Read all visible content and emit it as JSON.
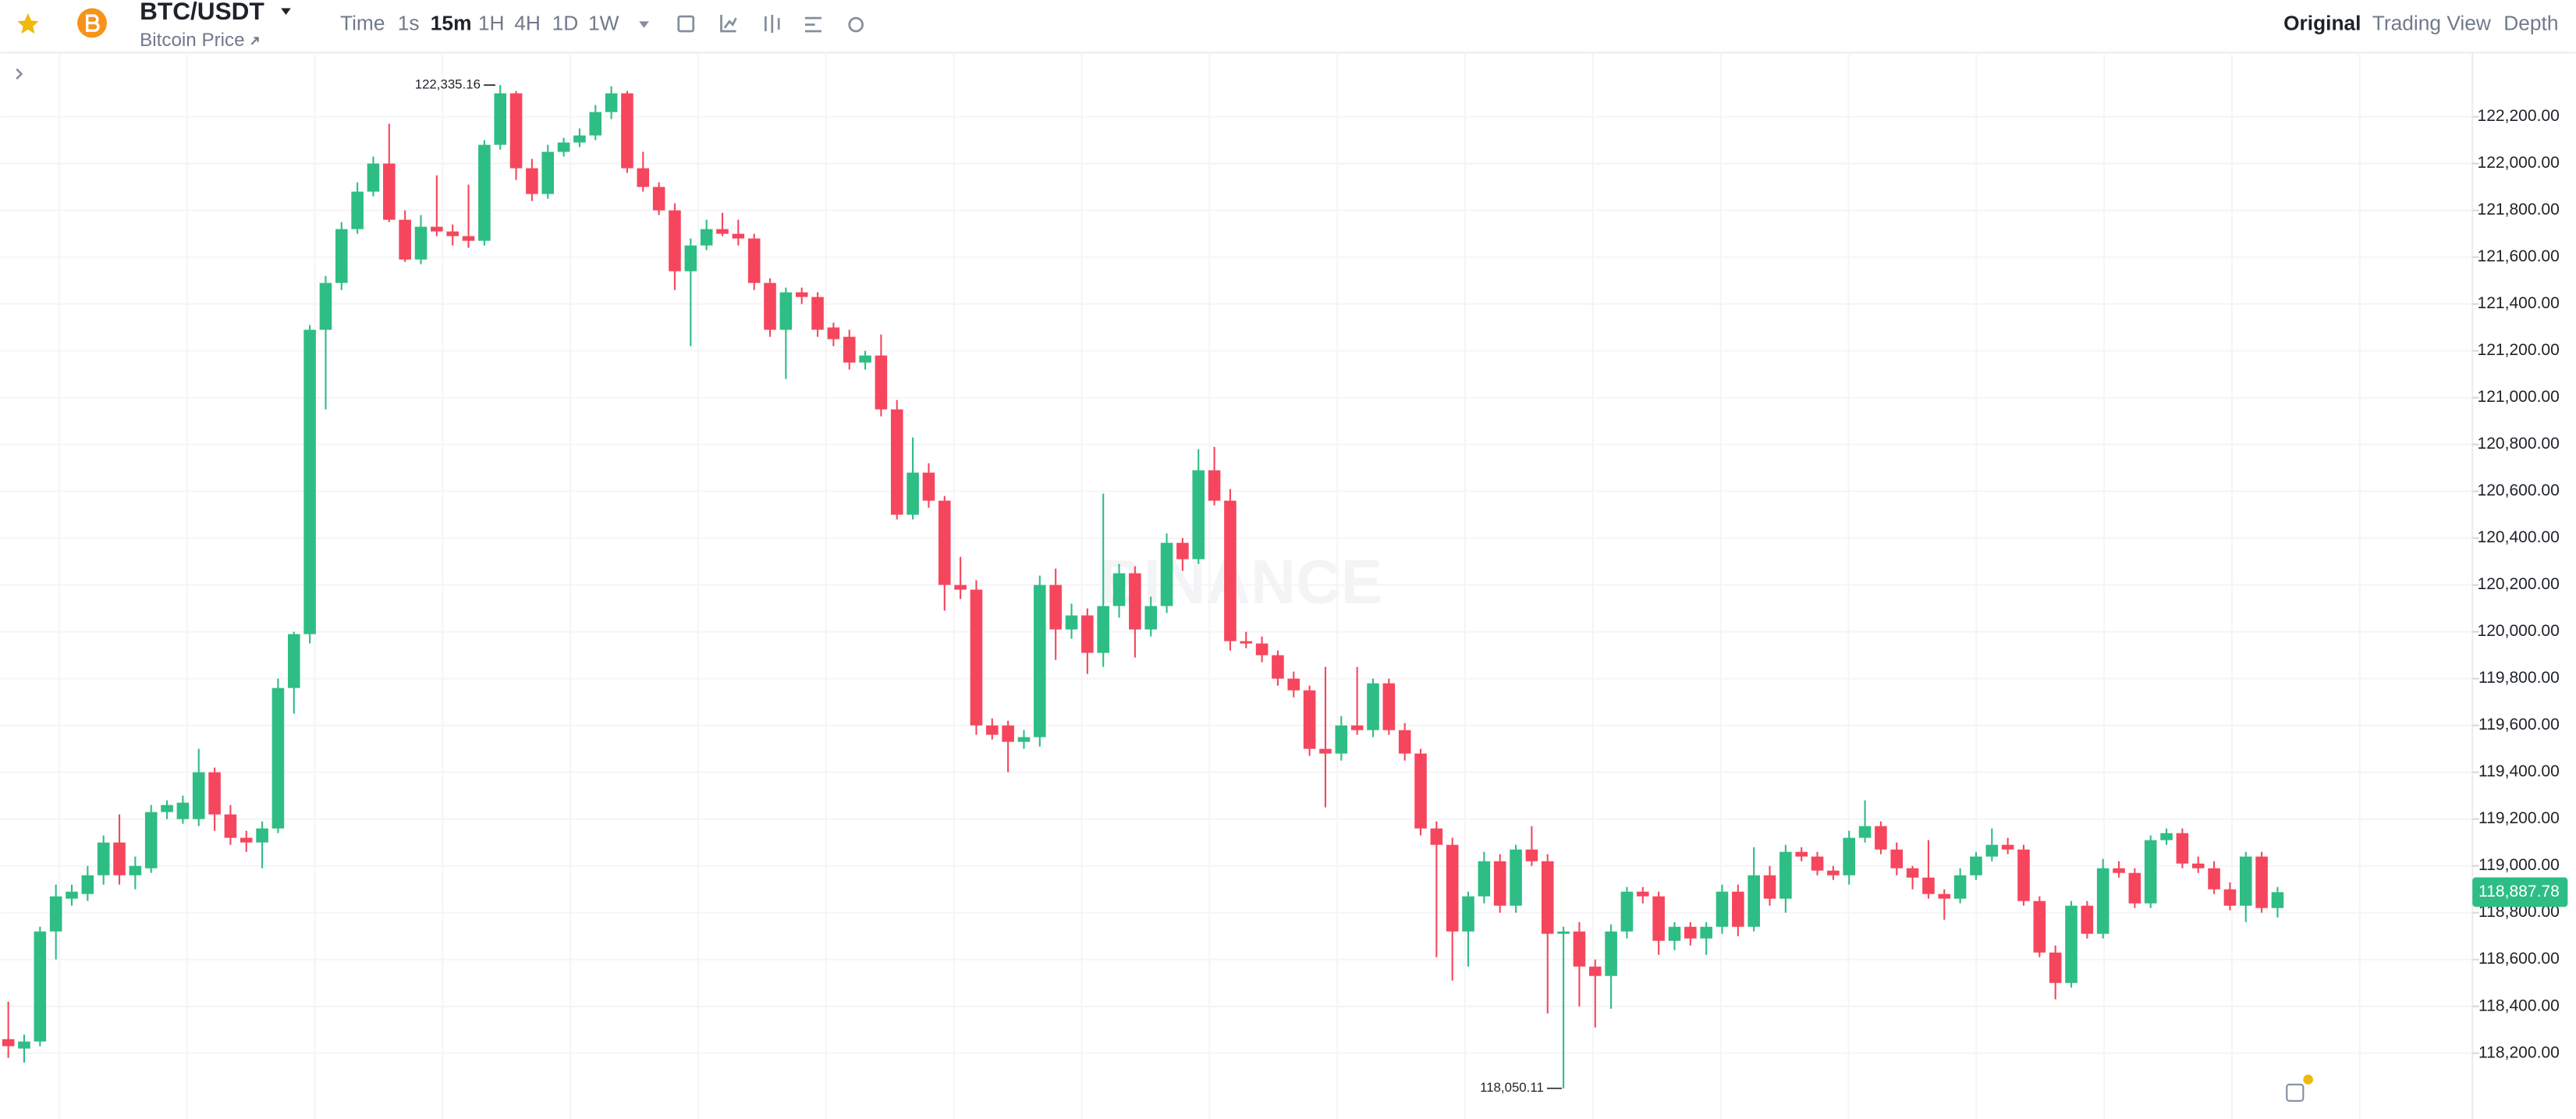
{
  "header": {
    "symbol": "BTC/USDT",
    "subtitle": "Bitcoin Price",
    "intervals": [
      "Time",
      "1s",
      "15m",
      "1H",
      "4H",
      "1D",
      "1W"
    ],
    "tabs": [
      "Original",
      "Trading View",
      "Depth"
    ]
  },
  "chart_data": {
    "type": "candlestick",
    "up_color": "#2ebd85",
    "down_color": "#f6465d",
    "grid": true,
    "watermark": "BINANCE",
    "ylim": [
      117919,
      122474
    ],
    "yticks": [
      {
        "value": 118200,
        "label": "118,200.00"
      },
      {
        "value": 118400,
        "label": "118,400.00"
      },
      {
        "value": 118600,
        "label": "118,600.00"
      },
      {
        "value": 118800,
        "label": "118,800.00"
      },
      {
        "value": 119000,
        "label": "119,000.00"
      },
      {
        "value": 119200,
        "label": "119,200.00"
      },
      {
        "value": 119400,
        "label": "119,400.00"
      },
      {
        "value": 119600,
        "label": "119,600.00"
      },
      {
        "value": 119800,
        "label": "119,800.00"
      },
      {
        "value": 120000,
        "label": "120,000.00"
      },
      {
        "value": 120200,
        "label": "120,200.00"
      },
      {
        "value": 120400,
        "label": "120,400.00"
      },
      {
        "value": 120600,
        "label": "120,600.00"
      },
      {
        "value": 120800,
        "label": "120,800.00"
      },
      {
        "value": 121000,
        "label": "121,000.00"
      },
      {
        "value": 121200,
        "label": "121,200.00"
      },
      {
        "value": 121400,
        "label": "121,400.00"
      },
      {
        "value": 121600,
        "label": "121,600.00"
      },
      {
        "value": 121800,
        "label": "121,800.00"
      },
      {
        "value": 122000,
        "label": "122,000.00"
      },
      {
        "value": 122200,
        "label": "122,200.00"
      }
    ],
    "max_label": {
      "value": 122335.16,
      "label": "122,335.16"
    },
    "min_label": {
      "value": 118050.11,
      "label": "118,050.11"
    },
    "last_price": {
      "value": 118887.78,
      "label": "118,887.78"
    },
    "open": [
      118260,
      118220,
      118250,
      118720,
      118860,
      118880,
      118960,
      119100,
      118960,
      118990,
      119230,
      119200,
      119200,
      119400,
      119220,
      119120,
      119100,
      119160,
      119760,
      119990,
      121290,
      121490,
      121720,
      121880,
      122000,
      121760,
      121590,
      121730,
      121710,
      121690,
      121670,
      122080,
      122300,
      121980,
      121870,
      122050,
      122090,
      122120,
      122220,
      122300,
      121980,
      121900,
      121800,
      121540,
      121650,
      121720,
      121700,
      121680,
      121490,
      121290,
      121450,
      121430,
      121300,
      121260,
      121150,
      121180,
      120950,
      120500,
      120680,
      120560,
      120200,
      120180,
      119600,
      119600,
      119530,
      119550,
      120200,
      120010,
      120070,
      119910,
      120110,
      120250,
      120010,
      120110,
      120380,
      120310,
      120690,
      120560,
      119960,
      119950,
      119900,
      119800,
      119750,
      119500,
      119480,
      119600,
      119580,
      119780,
      119580,
      119480,
      119160,
      119090,
      118720,
      118870,
      119020,
      118830,
      119070,
      119020,
      118710,
      118720,
      118570,
      118530,
      118720,
      118890,
      118870,
      118680,
      118740,
      118690,
      118740,
      118890,
      118740,
      118960,
      118860,
      119060,
      119040,
      118980,
      118960,
      119120,
      119170,
      119070,
      118990,
      118950,
      118880,
      118860,
      118960,
      119040,
      119090,
      119070,
      118850,
      118630,
      118500,
      118830,
      118710,
      118990,
      118970,
      118840,
      119110,
      119140,
      119010,
      118990,
      118900,
      118830,
      119040,
      118820
    ],
    "high": [
      118420,
      118280,
      118740,
      118920,
      118920,
      119000,
      119130,
      119220,
      119040,
      119260,
      119280,
      119300,
      119500,
      119420,
      119260,
      119150,
      119190,
      119800,
      120000,
      121310,
      121520,
      121750,
      121920,
      122030,
      122170,
      121800,
      121780,
      121950,
      121740,
      121910,
      122100,
      122335.16,
      122310,
      122020,
      122080,
      122110,
      122150,
      122250,
      122330,
      122310,
      122050,
      121920,
      121830,
      121680,
      121760,
      121790,
      121760,
      121700,
      121510,
      121470,
      121470,
      121450,
      121320,
      121290,
      121200,
      121270,
      120990,
      120830,
      120720,
      120580,
      120320,
      120220,
      119630,
      119620,
      119580,
      120240,
      120270,
      120120,
      120100,
      120590,
      120290,
      120280,
      120150,
      120420,
      120400,
      120780,
      120790,
      120610,
      120000,
      119980,
      119920,
      119830,
      119770,
      119850,
      119640,
      119850,
      119800,
      119800,
      119610,
      119500,
      119190,
      119120,
      118890,
      119060,
      119050,
      119090,
      119170,
      119050,
      118740,
      118760,
      118600,
      118750,
      118910,
      118910,
      118890,
      118760,
      118760,
      118760,
      118920,
      118920,
      119080,
      119000,
      119090,
      119080,
      119060,
      119000,
      119150,
      119280,
      119190,
      119100,
      119000,
      119110,
      118900,
      118990,
      119060,
      119160,
      119120,
      119090,
      118870,
      118660,
      118850,
      118850,
      119030,
      119020,
      118990,
      119130,
      119160,
      119160,
      119040,
      119020,
      118930,
      119060,
      119060,
      118910
    ],
    "low": [
      118180,
      118160,
      118230,
      118600,
      118830,
      118850,
      118920,
      118920,
      118900,
      118970,
      119200,
      119180,
      119170,
      119150,
      119090,
      119060,
      118990,
      119140,
      119650,
      119950,
      120950,
      121460,
      121700,
      121860,
      121750,
      121580,
      121570,
      121690,
      121650,
      121640,
      121650,
      122060,
      121930,
      121840,
      121850,
      122030,
      122070,
      122100,
      122190,
      121960,
      121880,
      121780,
      121460,
      121220,
      121630,
      121690,
      121650,
      121460,
      121260,
      121080,
      121400,
      121260,
      121220,
      121120,
      121120,
      120920,
      120480,
      120480,
      120530,
      120090,
      120140,
      119560,
      119540,
      119400,
      119500,
      119510,
      119880,
      119970,
      119820,
      119850,
      120060,
      119890,
      119980,
      120080,
      120260,
      120290,
      120540,
      119920,
      119930,
      119870,
      119770,
      119720,
      119470,
      119250,
      119450,
      119560,
      119550,
      119560,
      119450,
      119130,
      118610,
      118510,
      118570,
      118840,
      118800,
      118800,
      119000,
      118370,
      118050.11,
      118400,
      118310,
      118390,
      118690,
      118840,
      118620,
      118640,
      118660,
      118620,
      118710,
      118700,
      118720,
      118830,
      118800,
      119020,
      118960,
      118940,
      118920,
      119100,
      119050,
      118960,
      118900,
      118860,
      118770,
      118840,
      118940,
      119020,
      119050,
      118830,
      118610,
      118430,
      118480,
      118690,
      118690,
      118950,
      118820,
      118820,
      119090,
      118990,
      118970,
      118880,
      118810,
      118760,
      118800,
      118780
    ],
    "close": [
      118230,
      118250,
      118720,
      118870,
      118890,
      118960,
      119100,
      118960,
      119000,
      119230,
      119260,
      119270,
      119400,
      119220,
      119120,
      119100,
      119160,
      119760,
      119990,
      121290,
      121490,
      121720,
      121880,
      122000,
      121760,
      121590,
      121730,
      121710,
      121690,
      121670,
      122080,
      122300,
      121980,
      121870,
      122050,
      122090,
      122120,
      122220,
      122300,
      121980,
      121900,
      121800,
      121540,
      121650,
      121720,
      121700,
      121680,
      121490,
      121290,
      121450,
      121430,
      121290,
      121250,
      121150,
      121180,
      120950,
      120500,
      120680,
      120560,
      120200,
      120180,
      119600,
      119560,
      119530,
      119550,
      120200,
      120010,
      120070,
      119910,
      120110,
      120250,
      120010,
      120110,
      120380,
      120310,
      120690,
      120560,
      119960,
      119950,
      119900,
      119800,
      119750,
      119500,
      119480,
      119600,
      119580,
      119780,
      119580,
      119480,
      119160,
      119090,
      118720,
      118870,
      119020,
      118830,
      119070,
      119020,
      118710,
      118720,
      118570,
      118530,
      118720,
      118890,
      118870,
      118680,
      118740,
      118690,
      118740,
      118890,
      118740,
      118960,
      118860,
      119060,
      119040,
      118980,
      118960,
      119120,
      119170,
      119070,
      118990,
      118950,
      118880,
      118860,
      118960,
      119040,
      119090,
      119070,
      118850,
      118630,
      118500,
      118830,
      118710,
      118990,
      118970,
      118840,
      119110,
      119140,
      119010,
      118990,
      118900,
      118830,
      119040,
      118820,
      118887.78
    ]
  }
}
